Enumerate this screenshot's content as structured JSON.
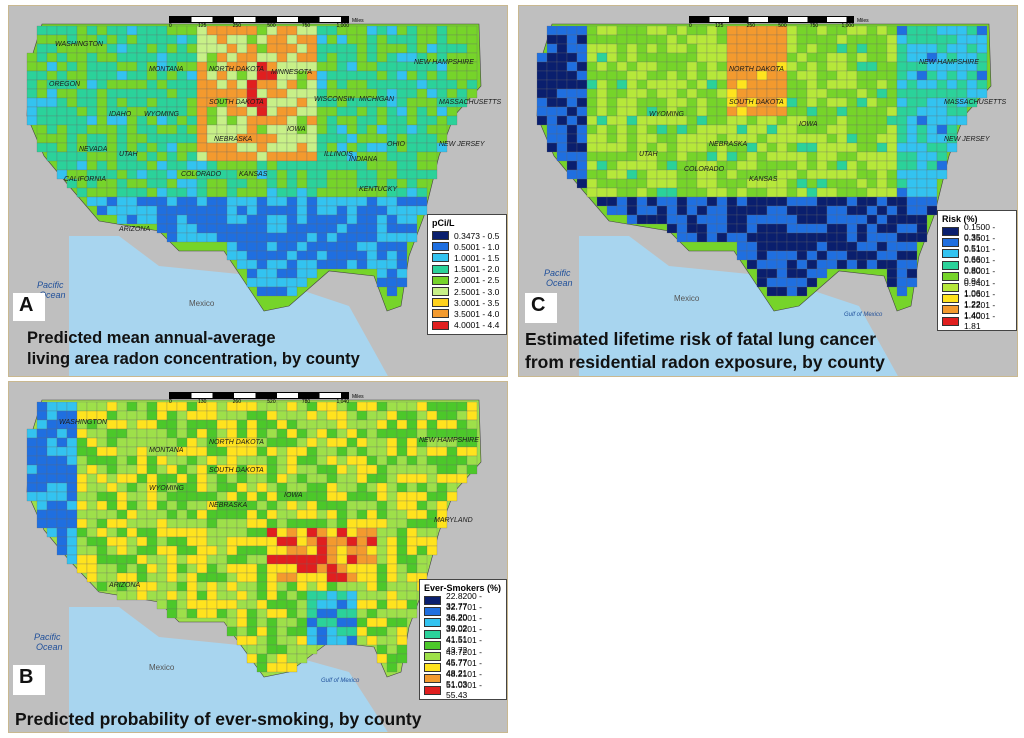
{
  "panels": {
    "a": {
      "letter": "A",
      "caption_line1": "Predicted mean annual-average",
      "caption_line2": "living area radon concentration, by county",
      "legend_title": "pCi/L",
      "legend": [
        {
          "label": "0.3473 - 0.5",
          "color": "#0a1f6e"
        },
        {
          "label": "0.5001 - 1.0",
          "color": "#1f6fe0"
        },
        {
          "label": "1.0001 - 1.5",
          "color": "#33c3f0"
        },
        {
          "label": "1.5001 - 2.0",
          "color": "#2bd29a"
        },
        {
          "label": "2.0001 - 2.5",
          "color": "#76d42a"
        },
        {
          "label": "2.5001 - 3.0",
          "color": "#c8f088"
        },
        {
          "label": "3.0001 - 3.5",
          "color": "#ffd21e"
        },
        {
          "label": "3.5001 - 4.0",
          "color": "#f39a2e"
        },
        {
          "label": "4.0001 - 4.4",
          "color": "#e01f1f"
        }
      ],
      "colors": [
        "#1f6fe0",
        "#33c3f0",
        "#2bd29a",
        "#76d42a",
        "#c8f088",
        "#f39a2e",
        "#e01f1f"
      ]
    },
    "b": {
      "letter": "B",
      "caption": "Predicted probability of ever-smoking, by county",
      "legend_title": "Ever-Smokers (%)",
      "legend": [
        {
          "label": "22.8200 - 32.77",
          "color": "#0a1f6e"
        },
        {
          "label": "32.7701 - 36.20",
          "color": "#1f6fe0"
        },
        {
          "label": "36.2001 - 39.02",
          "color": "#33c3f0"
        },
        {
          "label": "39.0201 - 41.51",
          "color": "#2bd29a"
        },
        {
          "label": "41.5101 - 43.72",
          "color": "#4cc82a"
        },
        {
          "label": "43.7201 - 45.77",
          "color": "#9ee04a"
        },
        {
          "label": "45.7701 - 48.21",
          "color": "#ffe31e"
        },
        {
          "label": "48.2101 - 51.03",
          "color": "#f39a2e"
        },
        {
          "label": "51.0301 - 55.43",
          "color": "#e01f1f"
        }
      ],
      "colors": [
        "#1f6fe0",
        "#33c3f0",
        "#2bd29a",
        "#4cc82a",
        "#9ee04a",
        "#ffe31e",
        "#f39a2e",
        "#e01f1f"
      ]
    },
    "c": {
      "letter": "C",
      "caption_line1": "Estimated lifetime risk of fatal lung cancer",
      "caption_line2": "from residential radon exposure, by county",
      "legend_title": "Risk (%)",
      "legend": [
        {
          "label": "0.1500 - 0.35",
          "color": "#0a1f6e"
        },
        {
          "label": "0.3501 - 0.51",
          "color": "#1f6fe0"
        },
        {
          "label": "0.5101 - 0.66",
          "color": "#33c3f0"
        },
        {
          "label": "0.6601 - 0.80",
          "color": "#2bd29a"
        },
        {
          "label": "0.8001 - 0.94",
          "color": "#76d42a"
        },
        {
          "label": "0.9401 - 1.06",
          "color": "#b6e83a"
        },
        {
          "label": "1.0601 - 1.22",
          "color": "#ffe31e"
        },
        {
          "label": "1.2201 - 1.40",
          "color": "#f39a2e"
        },
        {
          "label": "1.4001 - 1.81",
          "color": "#e01f1f"
        }
      ],
      "colors": [
        "#0a1f6e",
        "#1f6fe0",
        "#33c3f0",
        "#2bd29a",
        "#76d42a",
        "#b6e83a",
        "#ffe31e",
        "#f39a2e"
      ]
    }
  },
  "map_labels": {
    "pacific": "Pacific",
    "ocean": "Ocean",
    "mexico": "Mexico",
    "gulf": "Gulf of Mexico",
    "miles": "Miles",
    "scale_ticks": [
      "0",
      "125",
      "250",
      "500",
      "750",
      "1,000"
    ],
    "scale_ticks_b": [
      "0",
      "130",
      "260",
      "520",
      "780",
      "1,040"
    ],
    "states": [
      "WASHINGTON",
      "OREGON",
      "CALIFORNIA",
      "NEVADA",
      "IDAHO",
      "MONTANA",
      "WYOMING",
      "UTAH",
      "ARIZONA",
      "COLORADO",
      "NORTH DAKOTA",
      "SOUTH DAKOTA",
      "NEBRASKA",
      "KANSAS",
      "MINNESOTA",
      "IOWA",
      "WISCONSIN",
      "ILLINOIS",
      "MICHIGAN",
      "INDIANA",
      "OHIO",
      "KENTUCKY",
      "NEW HAMPSHIRE",
      "MASSACHUSETTS",
      "NEW JERSEY",
      "MARYLAND"
    ]
  }
}
